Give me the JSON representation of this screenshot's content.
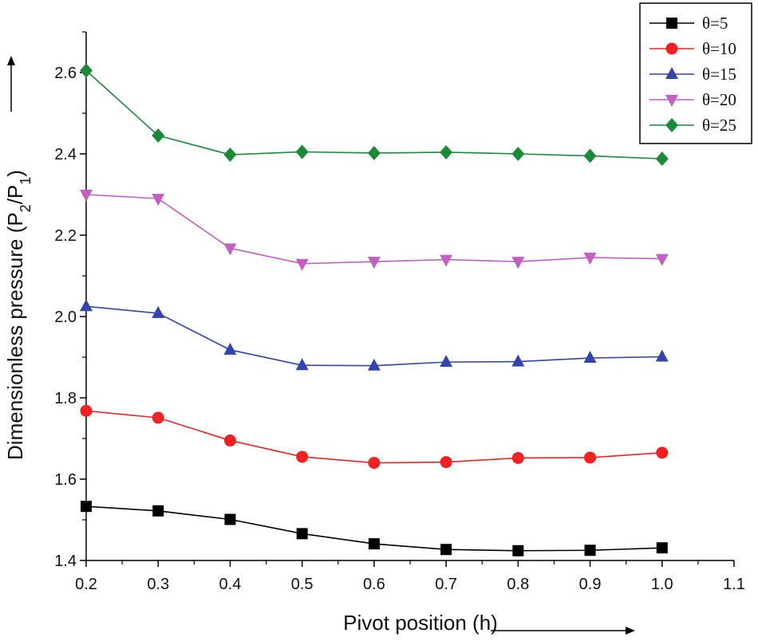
{
  "chart_data": {
    "type": "line",
    "title": "",
    "xlabel": "Pivot position (h)",
    "ylabel_main": "Dimensionless pressure (P",
    "ylabel_sub1": "2",
    "ylabel_mid": "/P",
    "ylabel_sub2": "1",
    "ylabel_end": ")",
    "xlim": [
      0.2,
      1.1
    ],
    "ylim": [
      1.4,
      2.7
    ],
    "x_ticks": [
      "0.2",
      "0.3",
      "0.4",
      "0.5",
      "0.6",
      "0.7",
      "0.8",
      "0.9",
      "1.0",
      "1.1"
    ],
    "y_ticks": [
      "1.4",
      "1.6",
      "1.8",
      "2.0",
      "2.2",
      "2.4",
      "2.6"
    ],
    "x": [
      0.2,
      0.3,
      0.4,
      0.5,
      0.6,
      0.7,
      0.8,
      0.9,
      1.0
    ],
    "legend_position": "top-right",
    "series": [
      {
        "name": "θ=5",
        "color": "#000000",
        "marker": "square",
        "values": [
          1.533,
          1.522,
          1.501,
          1.466,
          1.441,
          1.427,
          1.424,
          1.425,
          1.431
        ]
      },
      {
        "name": "θ=10",
        "color": "#ee2222",
        "marker": "circle",
        "values": [
          1.768,
          1.751,
          1.695,
          1.655,
          1.64,
          1.642,
          1.652,
          1.653,
          1.665
        ]
      },
      {
        "name": "θ=15",
        "color": "#3344aa",
        "marker": "triangle-up",
        "values": [
          2.025,
          2.008,
          1.918,
          1.88,
          1.879,
          1.888,
          1.889,
          1.898,
          1.901
        ]
      },
      {
        "name": "θ=20",
        "color": "#c060c0",
        "marker": "triangle-down",
        "values": [
          2.3,
          2.29,
          2.168,
          2.13,
          2.135,
          2.14,
          2.135,
          2.145,
          2.142
        ]
      },
      {
        "name": "θ=25",
        "color": "#1a8a3a",
        "marker": "diamond",
        "values": [
          2.605,
          2.445,
          2.398,
          2.405,
          2.402,
          2.404,
          2.4,
          2.395,
          2.388
        ]
      }
    ]
  }
}
